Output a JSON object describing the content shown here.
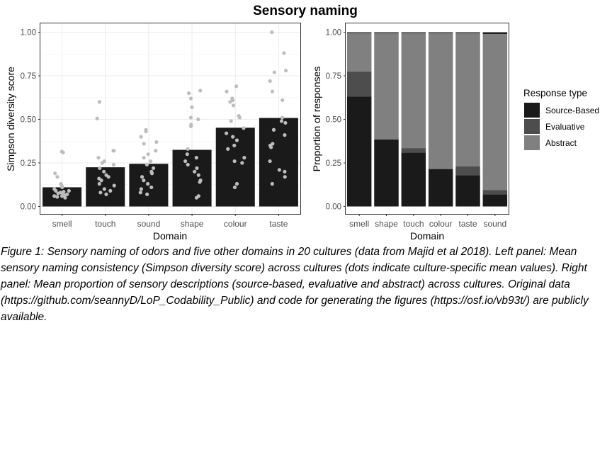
{
  "figure": {
    "title": "Sensory naming",
    "caption": "Figure 1: Sensory naming of odors and five other domains in 20 cultures (data from Majid et al 2018). Left panel: Mean sensory naming consistency (Simpson diversity score) across cultures (dots indicate culture-specific mean values). Right panel: Mean proportion of sensory descriptions (source-based, evaluative and abstract) across cultures. Original data (https://github.com/seannyD/LoP_Codability_Public) and code for generating the figures (https://osf.io/vb93t/) are publicly available."
  },
  "chart_data": [
    {
      "type": "bar",
      "title": "",
      "xlabel": "Domain",
      "ylabel": "Simpson diversity score",
      "ylim": [
        0,
        1.05
      ],
      "yticks": [
        0,
        0.25,
        0.5,
        0.75,
        1
      ],
      "ytick_labels": [
        "0.00",
        "0.25",
        "0.50",
        "0.75",
        "1.00"
      ],
      "grid": true,
      "categories": [
        "smell",
        "touch",
        "sound",
        "shape",
        "colour",
        "taste"
      ],
      "values": [
        0.11,
        0.225,
        0.245,
        0.325,
        0.452,
        0.508
      ],
      "bar_color": "#1a1a1a",
      "point_color": "#bdbdbd",
      "points": [
        [
          0.315,
          0.31,
          0.19,
          0.17,
          0.13,
          0.11,
          0.1,
          0.09,
          0.085,
          0.08,
          0.075,
          0.07,
          0.065,
          0.06,
          0.06,
          0.055,
          0.05,
          0.09,
          0.07,
          0.12
        ],
        [
          0.6,
          0.505,
          0.32,
          0.32,
          0.28,
          0.26,
          0.24,
          0.22,
          0.2,
          0.18,
          0.17,
          0.15,
          0.13,
          0.12,
          0.1,
          0.08,
          0.07,
          0.25,
          0.16,
          0.09
        ],
        [
          0.44,
          0.43,
          0.4,
          0.37,
          0.36,
          0.32,
          0.3,
          0.28,
          0.26,
          0.24,
          0.22,
          0.2,
          0.17,
          0.15,
          0.13,
          0.1,
          0.08,
          0.07,
          0.19,
          0.11
        ],
        [
          0.665,
          0.65,
          0.62,
          0.57,
          0.51,
          0.5,
          0.47,
          0.46,
          0.33,
          0.3,
          0.28,
          0.26,
          0.24,
          0.22,
          0.18,
          0.15,
          0.14,
          0.06,
          0.05,
          0.2
        ],
        [
          0.69,
          0.66,
          0.62,
          0.61,
          0.6,
          0.58,
          0.52,
          0.51,
          0.49,
          0.45,
          0.42,
          0.4,
          0.38,
          0.35,
          0.33,
          0.28,
          0.26,
          0.25,
          0.13,
          0.11
        ],
        [
          1.0,
          0.88,
          0.78,
          0.77,
          0.72,
          0.66,
          0.61,
          0.51,
          0.49,
          0.48,
          0.44,
          0.41,
          0.36,
          0.35,
          0.34,
          0.26,
          0.21,
          0.2,
          0.17,
          0.13
        ]
      ]
    },
    {
      "type": "bar",
      "stacked": true,
      "title": "",
      "xlabel": "Domain",
      "ylabel": "Proportion of responses",
      "ylim": [
        0,
        1.05
      ],
      "yticks": [
        0,
        0.25,
        0.5,
        0.75,
        1
      ],
      "ytick_labels": [
        "0.00",
        "0.25",
        "0.50",
        "0.75",
        "1.00"
      ],
      "grid": false,
      "categories": [
        "smell",
        "shape",
        "touch",
        "colour",
        "taste",
        "sound"
      ],
      "legend": {
        "title": "Response type",
        "placement": "right"
      },
      "series": [
        {
          "name": "Source-Based",
          "color": "#1a1a1a",
          "values": [
            0.63,
            0.385,
            0.31,
            0.215,
            0.18,
            0.07
          ]
        },
        {
          "name": "Evaluative",
          "color": "#4d4d4d",
          "values": [
            0.145,
            0.0,
            0.025,
            0.0,
            0.05,
            0.025
          ]
        },
        {
          "name": "Abstract",
          "color": "#808080",
          "values": [
            0.22,
            0.61,
            0.66,
            0.78,
            0.765,
            0.895
          ]
        }
      ]
    }
  ]
}
